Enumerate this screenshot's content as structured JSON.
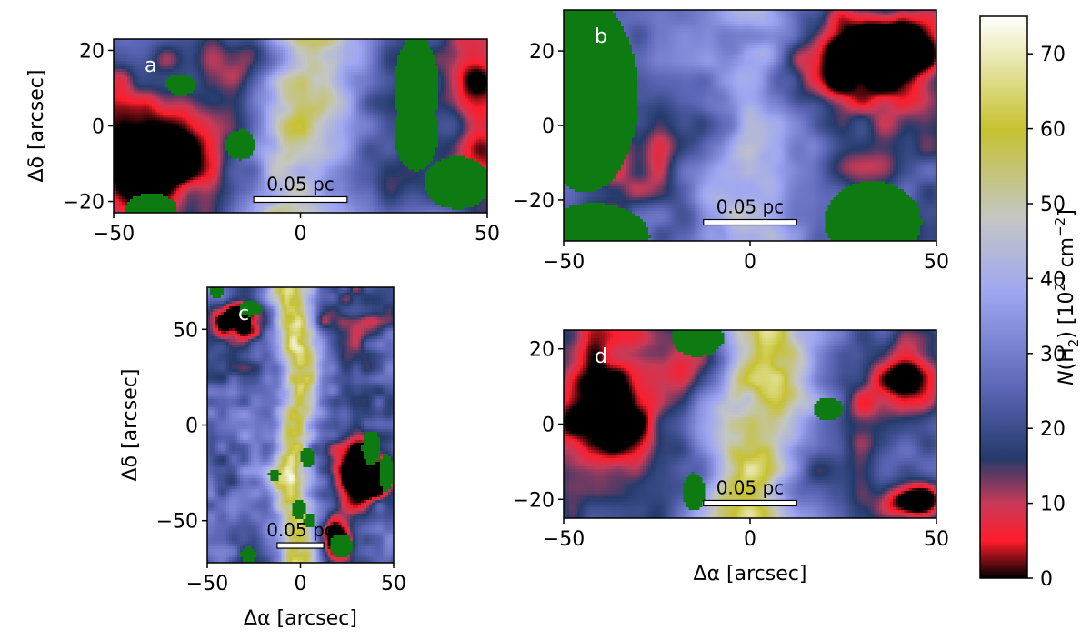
{
  "chart_data": {
    "type": "heatmap",
    "quantity_label": "N(H2) [10^21 cm^-2]",
    "colorbar": {
      "label_parts": {
        "italic": "N",
        "main": "(H",
        "sub": "2",
        "rest": ") [10",
        "sup": "21",
        "unit": " cm",
        "unit_sup": "−2",
        "close": "]"
      },
      "range": [
        0,
        75
      ],
      "ticks": [
        "0",
        "10",
        "20",
        "30",
        "40",
        "50",
        "60",
        "70"
      ],
      "stops": [
        {
          "value": 0,
          "color": "#000000"
        },
        {
          "value": 5,
          "color": "#ff1c2a"
        },
        {
          "value": 10,
          "color": "#c83a58"
        },
        {
          "value": 16,
          "color": "#243a6a"
        },
        {
          "value": 25,
          "color": "#5a64b4"
        },
        {
          "value": 38,
          "color": "#9ea6f2"
        },
        {
          "value": 48,
          "color": "#c4c6c4"
        },
        {
          "value": 60,
          "color": "#c6c230"
        },
        {
          "value": 75,
          "color": "#ffffff"
        }
      ]
    },
    "mask_color": "#0d7a12",
    "panels": [
      {
        "id": "a",
        "letter": "a",
        "xlim": [
          -50,
          50
        ],
        "ylim": [
          -23,
          23
        ],
        "xticks": [
          "−50",
          "0",
          "50"
        ],
        "xtick_values": [
          -50,
          0,
          50
        ],
        "yticks": [
          "−20",
          "0",
          "20"
        ],
        "ytick_values": [
          -20,
          0,
          20
        ],
        "xlabel": "",
        "ylabel": "Δδ [arcsec]",
        "scalebar": {
          "label": "0.05 pc",
          "x_from": -12.5,
          "x_to": 12.5,
          "y": -19.5
        },
        "filament": {
          "x": 0,
          "peak": 55,
          "width": 9
        },
        "blobs": [
          {
            "x": -40,
            "y": -6,
            "rx": 17,
            "ry": 16,
            "v": -38
          },
          {
            "x": 48,
            "y": 2,
            "rx": 9,
            "ry": 26,
            "v": -25
          },
          {
            "x": -20,
            "y": 18,
            "rx": 30,
            "ry": 6,
            "v": -10
          }
        ],
        "masks": [
          {
            "x": 31,
            "y": 10,
            "rx": 6,
            "ry": 14
          },
          {
            "x": 31,
            "y": -2,
            "rx": 6,
            "ry": 10
          },
          {
            "x": 42,
            "y": -15,
            "rx": 9,
            "ry": 7
          },
          {
            "x": -16,
            "y": -5,
            "rx": 4,
            "ry": 4
          },
          {
            "x": -32,
            "y": 11,
            "rx": 4,
            "ry": 3
          },
          {
            "x": -40,
            "y": -22,
            "rx": 7,
            "ry": 4
          }
        ]
      },
      {
        "id": "b",
        "letter": "b",
        "xlim": [
          -50,
          50
        ],
        "ylim": [
          -31,
          31
        ],
        "xticks": [
          "−50",
          "0",
          "50"
        ],
        "xtick_values": [
          -50,
          0,
          50
        ],
        "yticks": [
          "−20",
          "0",
          "20"
        ],
        "ytick_values": [
          -20,
          0,
          20
        ],
        "xlabel": "",
        "ylabel": "",
        "scalebar": {
          "label": "0.05 pc",
          "x_from": -12.5,
          "x_to": 12.5,
          "y": -26
        },
        "filament": {
          "x": 0,
          "peak": 45,
          "width": 9
        },
        "blobs": [
          {
            "x": 34,
            "y": 22,
            "rx": 18,
            "ry": 9,
            "v": -40
          },
          {
            "x": 28,
            "y": 10,
            "rx": 25,
            "ry": 10,
            "v": -18
          },
          {
            "x": -30,
            "y": -12,
            "rx": 20,
            "ry": 12,
            "v": -14
          },
          {
            "x": 30,
            "y": -10,
            "rx": 14,
            "ry": 8,
            "v": -14
          }
        ],
        "masks": [
          {
            "x": -44,
            "y": 8,
            "rx": 14,
            "ry": 26
          },
          {
            "x": -42,
            "y": -30,
            "rx": 15,
            "ry": 9
          },
          {
            "x": 33,
            "y": -26,
            "rx": 13,
            "ry": 11
          }
        ]
      },
      {
        "id": "c",
        "letter": "c",
        "xlim": [
          -50,
          50
        ],
        "ylim": [
          -72,
          72
        ],
        "xticks": [
          "−50",
          "0",
          "50"
        ],
        "xtick_values": [
          -50,
          0,
          50
        ],
        "yticks": [
          "−50",
          "0",
          "50"
        ],
        "ytick_values": [
          -50,
          0,
          50
        ],
        "xlabel": "Δα [arcsec]",
        "ylabel": "Δδ [arcsec]",
        "scalebar": {
          "label": "0.05 pc",
          "x_from": -12.5,
          "x_to": 12.5,
          "y": -63
        },
        "filament": {
          "x": -3,
          "peak": 62,
          "width": 7
        },
        "blobs": [
          {
            "x": 35,
            "y": -25,
            "rx": 14,
            "ry": 18,
            "v": -40
          },
          {
            "x": -35,
            "y": 55,
            "rx": 14,
            "ry": 10,
            "v": -30
          },
          {
            "x": 28,
            "y": 45,
            "rx": 14,
            "ry": 20,
            "v": -18
          },
          {
            "x": 20,
            "y": -60,
            "rx": 8,
            "ry": 10,
            "v": -35
          }
        ],
        "masks": [
          {
            "x": -27,
            "y": 61,
            "rx": 6,
            "ry": 4
          },
          {
            "x": -45,
            "y": 70,
            "rx": 4,
            "ry": 4
          },
          {
            "x": 38,
            "y": -12,
            "rx": 5,
            "ry": 9
          },
          {
            "x": 46,
            "y": -25,
            "rx": 4,
            "ry": 10
          },
          {
            "x": 4,
            "y": -17,
            "rx": 4,
            "ry": 5
          },
          {
            "x": -1,
            "y": -44,
            "rx": 4,
            "ry": 5
          },
          {
            "x": 5,
            "y": -50,
            "rx": 3,
            "ry": 4
          },
          {
            "x": 22,
            "y": -63,
            "rx": 6,
            "ry": 6
          },
          {
            "x": -28,
            "y": -68,
            "rx": 4,
            "ry": 4
          },
          {
            "x": -14,
            "y": -26,
            "rx": 3,
            "ry": 3
          }
        ]
      },
      {
        "id": "d",
        "letter": "d",
        "xlim": [
          -50,
          50
        ],
        "ylim": [
          -25,
          25
        ],
        "xticks": [
          "−50",
          "0",
          "50"
        ],
        "xtick_values": [
          -50,
          0,
          50
        ],
        "yticks": [
          "−20",
          "0",
          "20"
        ],
        "ytick_values": [
          -20,
          0,
          20
        ],
        "xlabel": "Δα [arcsec]",
        "ylabel": "",
        "scalebar": {
          "label": "0.05 pc",
          "x_from": -12.5,
          "x_to": 12.5,
          "y": -21
        },
        "filament": {
          "x": 2,
          "peak": 62,
          "width": 8
        },
        "blobs": [
          {
            "x": -40,
            "y": 5,
            "rx": 14,
            "ry": 22,
            "v": -30
          },
          {
            "x": 44,
            "y": -20,
            "rx": 8,
            "ry": 5,
            "v": -40
          },
          {
            "x": 40,
            "y": 10,
            "rx": 14,
            "ry": 14,
            "v": -20
          },
          {
            "x": -20,
            "y": 15,
            "rx": 14,
            "ry": 8,
            "v": -14
          }
        ],
        "masks": [
          {
            "x": -14,
            "y": 23,
            "rx": 7,
            "ry": 5
          },
          {
            "x": 21,
            "y": 4,
            "rx": 4,
            "ry": 3
          },
          {
            "x": -15,
            "y": -18,
            "rx": 3,
            "ry": 5
          }
        ]
      }
    ]
  }
}
